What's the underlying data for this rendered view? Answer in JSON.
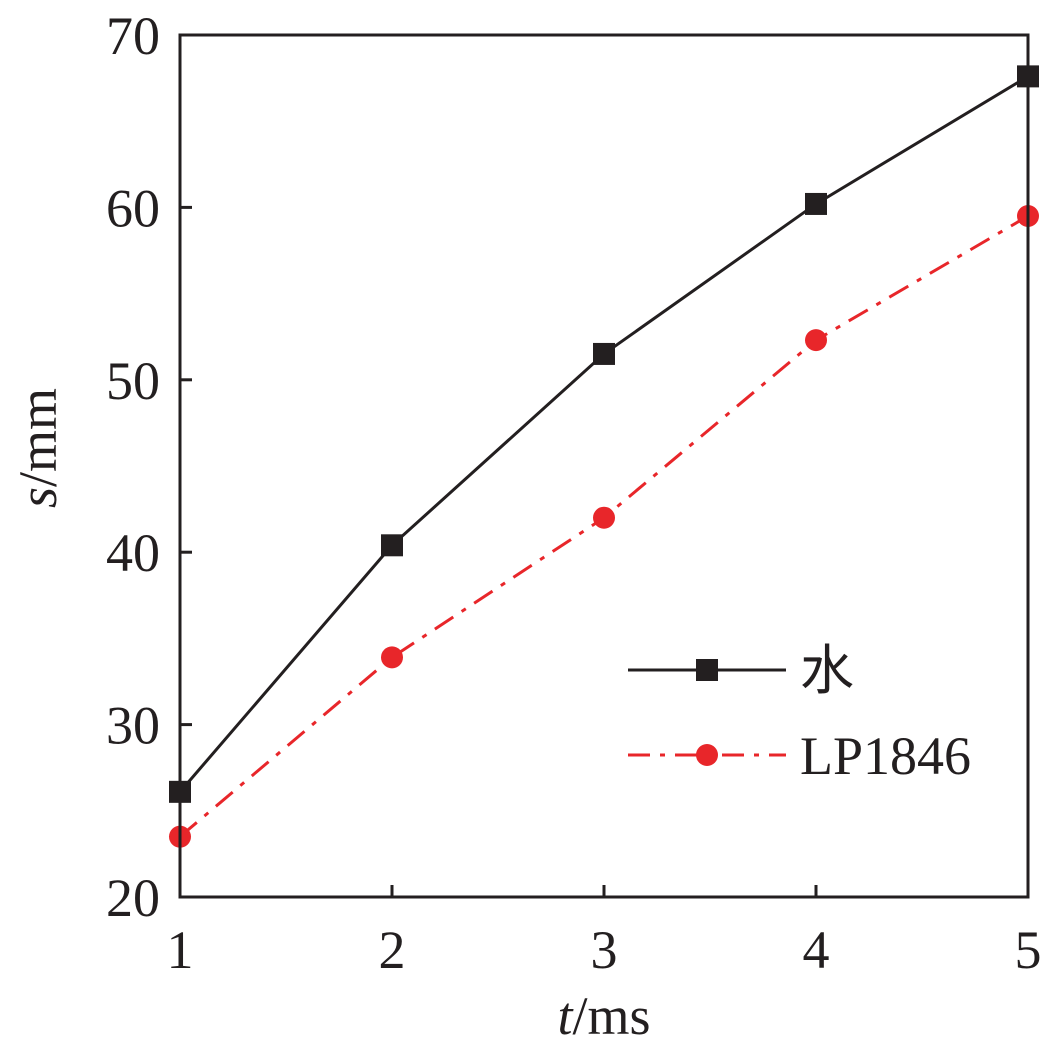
{
  "chart_data": {
    "type": "line",
    "xlabel": {
      "var": "t",
      "unit": "/ms"
    },
    "ylabel": {
      "var": "s",
      "unit": "/mm"
    },
    "x": [
      1,
      2,
      3,
      4,
      5
    ],
    "xlim": [
      1,
      5
    ],
    "ylim": [
      20,
      70
    ],
    "xticks": [
      "1",
      "2",
      "3",
      "4",
      "5"
    ],
    "yticks": [
      "20",
      "30",
      "40",
      "50",
      "60",
      "70"
    ],
    "grid": false,
    "legend_position": "center-right",
    "series": [
      {
        "name": "水",
        "values": [
          26.1,
          40.4,
          51.5,
          60.2,
          67.6
        ],
        "color": "#231f20",
        "marker": "square",
        "line_style": "solid"
      },
      {
        "name": "LP1846",
        "values": [
          23.5,
          33.9,
          42.0,
          52.3,
          59.5
        ],
        "color": "#e8262a",
        "marker": "circle",
        "line_style": "dash-dot"
      }
    ]
  }
}
